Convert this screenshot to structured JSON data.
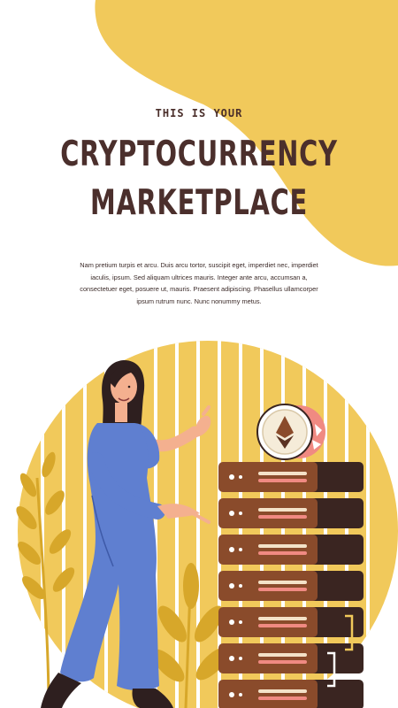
{
  "hero": {
    "eyebrow": "THIS IS YOUR",
    "title_line1": "CRYPTOCURRENCY",
    "title_line2": "MARKETPLACE",
    "body": "Nam pretium turpis et arcu. Duis arcu tortor, suscipit eget, imperdiet nec, imperdiet iaculis, ipsum. Sed aliquam ultrices mauris. Integer ante arcu, accumsan a, consectetuer eget, posuere ut, mauris. Praesent adipiscing. Phasellus ullamcorper ipsum rutrum nunc. Nunc nonummy metus."
  },
  "colors": {
    "background": "#ffffff",
    "accent_yellow": "#f1c95b",
    "title_brown": "#4b2f2c",
    "server_brown": "#8a4b2b",
    "server_dark": "#3a2521",
    "outfit_blue": "#5f7fd0",
    "coin_pink": "#f08a82"
  },
  "illustration": {
    "subject": "woman-presenting-server-stack",
    "coin_icon": "ethereum-icon",
    "server_units": 7
  }
}
